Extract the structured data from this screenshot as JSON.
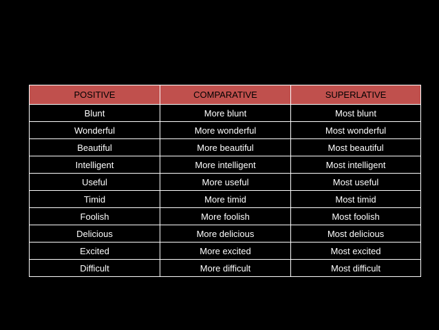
{
  "colors": {
    "background": "#000000",
    "header_fill": "#c0504d",
    "header_text": "#000000",
    "cell_text": "#ffffff",
    "border": "#ffffff"
  },
  "table": {
    "headers": [
      "POSITIVE",
      "COMPARATIVE",
      "SUPERLATIVE"
    ],
    "rows": [
      [
        "Blunt",
        "More blunt",
        "Most blunt"
      ],
      [
        "Wonderful",
        "More wonderful",
        "Most wonderful"
      ],
      [
        "Beautiful",
        "More beautiful",
        "Most beautiful"
      ],
      [
        "Intelligent",
        "More intelligent",
        "Most intelligent"
      ],
      [
        "Useful",
        "More useful",
        "Most useful"
      ],
      [
        "Timid",
        "More timid",
        "Most timid"
      ],
      [
        "Foolish",
        "More foolish",
        "Most foolish"
      ],
      [
        "Delicious",
        "More delicious",
        "Most delicious"
      ],
      [
        "Excited",
        "More excited",
        "Most excited"
      ],
      [
        "Difficult",
        "More difficult",
        "Most difficult"
      ]
    ]
  }
}
